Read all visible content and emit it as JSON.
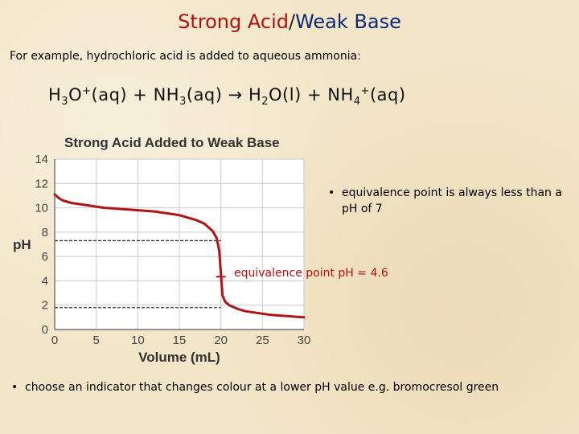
{
  "title": {
    "part1": "Strong Acid",
    "sep": "/",
    "part2": "Weak Base"
  },
  "example": "For example, hydrochloric acid is added to aqueous ammonia:",
  "equation": {
    "r1": "H",
    "r1_sub": "3",
    "r1_b": "O",
    "r1_sup": "+",
    "r1_state": "(aq)",
    "plus1": "+",
    "r2": "NH",
    "r2_sub": "3",
    "r2_state": "(aq)",
    "arrow": "→",
    "p1": "H",
    "p1_sub": "2",
    "p1_b": "O(l)",
    "plus2": "+",
    "p2": "NH",
    "p2_sub": "4",
    "p2_sup": "+",
    "p2_state": "(aq)"
  },
  "bullets": {
    "right": "equivalence point is always less than a pH of 7",
    "bottom": "choose an indicator that changes colour at a lower pH value e.g. bromocresol green",
    "dot": "•"
  },
  "equivalence_label": "equivalence point pH = 4.6",
  "chart_data": {
    "type": "line",
    "title": "Strong Acid Added to Weak Base",
    "xlabel": "Volume (mL)",
    "ylabel": "pH",
    "xlim": [
      0,
      30
    ],
    "ylim": [
      0,
      14
    ],
    "xticks": [
      0,
      5,
      10,
      15,
      20,
      25,
      30
    ],
    "yticks": [
      0,
      2,
      4,
      6,
      8,
      10,
      12,
      14
    ],
    "grid": true,
    "equivalence_point": {
      "x": 20,
      "y": 4.6
    },
    "reference_lines": [
      7.3,
      1.8
    ],
    "series": [
      {
        "color": "#b01515",
        "x": [
          0,
          0.5,
          1,
          2,
          3,
          4,
          5,
          6,
          7,
          8,
          9,
          10,
          11,
          12,
          13,
          14,
          15,
          16,
          17,
          18,
          19,
          19.5,
          19.8,
          20,
          20.2,
          20.5,
          21,
          22,
          23,
          24,
          25,
          26,
          27,
          28,
          29,
          30
        ],
        "y": [
          11.1,
          10.8,
          10.6,
          10.4,
          10.3,
          10.2,
          10.1,
          10.0,
          9.95,
          9.9,
          9.85,
          9.8,
          9.75,
          9.7,
          9.6,
          9.5,
          9.4,
          9.2,
          9.0,
          8.7,
          8.1,
          7.5,
          6.5,
          4.6,
          2.8,
          2.3,
          2.0,
          1.7,
          1.5,
          1.4,
          1.3,
          1.2,
          1.15,
          1.1,
          1.05,
          1.0
        ]
      }
    ]
  }
}
